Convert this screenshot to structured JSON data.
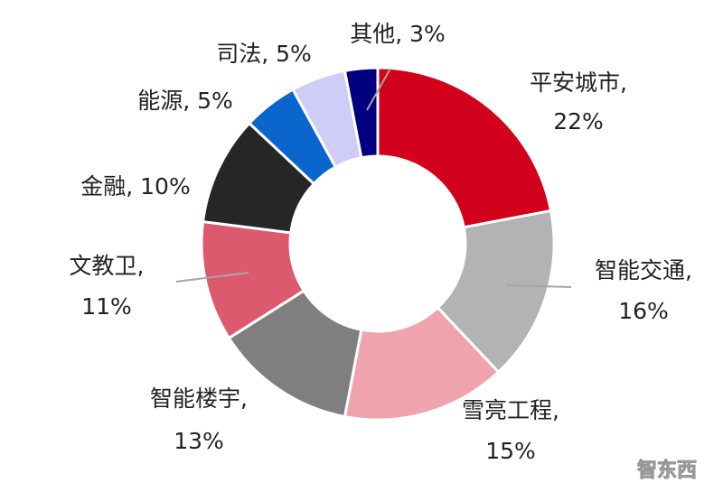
{
  "chart_data": {
    "type": "pie",
    "donut": true,
    "start": "top, clockwise",
    "slices": [
      {
        "label": "平安城市,",
        "pct_label": "22%",
        "value": 22,
        "color": "#d2001a"
      },
      {
        "label": "智能交通,",
        "pct_label": "16%",
        "value": 16,
        "color": "#b3b3b3"
      },
      {
        "label": "雪亮工程,",
        "pct_label": "15%",
        "value": 15,
        "color": "#efa3ad"
      },
      {
        "label": "智能楼宇,",
        "pct_label": "13%",
        "value": 13,
        "color": "#7f7f7f"
      },
      {
        "label": "文教卫,",
        "pct_label": "11%",
        "value": 11,
        "color": "#dd5a6e"
      },
      {
        "label": "金融,",
        "pct_label": "10%",
        "value": 10,
        "color": "#262626"
      },
      {
        "label": "能源,",
        "pct_label": "5%",
        "value": 5,
        "color": "#0a66cc"
      },
      {
        "label": "司法,",
        "pct_label": "5%",
        "value": 5,
        "color": "#cfcdf7"
      },
      {
        "label": "其他,",
        "pct_label": "3%",
        "value": 3,
        "color": "#000080"
      }
    ]
  },
  "watermark": "智东西"
}
